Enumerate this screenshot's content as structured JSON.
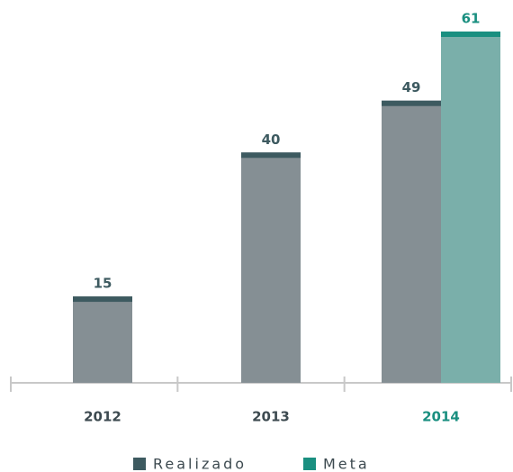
{
  "chart_data": {
    "type": "bar",
    "categories": [
      "2012",
      "2013",
      "2014"
    ],
    "series": [
      {
        "name": "Realizado",
        "color": "#3d5a60",
        "values": [
          15,
          40,
          49
        ]
      },
      {
        "name": "Meta",
        "color": "#1a8f80",
        "values": [
          null,
          null,
          61
        ]
      }
    ]
  }
}
